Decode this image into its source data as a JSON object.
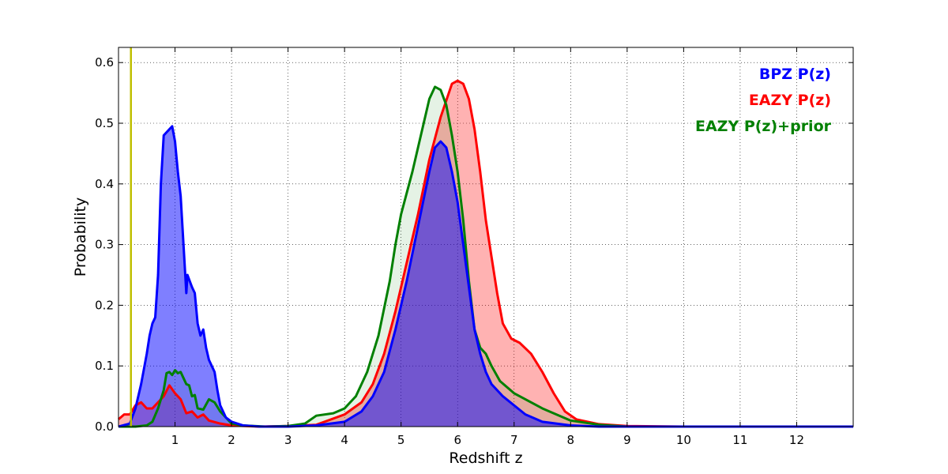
{
  "chart_data": {
    "type": "area",
    "title": "",
    "xlabel": "Redshift z",
    "ylabel": "Probability",
    "xlim": [
      0,
      13
    ],
    "ylim": [
      0,
      0.625
    ],
    "grid": true,
    "legend_position": "top-right",
    "x_ticks": [
      1,
      2,
      3,
      4,
      5,
      6,
      7,
      8,
      9,
      10,
      11,
      12
    ],
    "x_tick_labels": [
      "1",
      "2",
      "3",
      "4",
      "5",
      "6",
      "7",
      "8",
      "9",
      "10",
      "11",
      "12"
    ],
    "y_ticks": [
      0.0,
      0.1,
      0.2,
      0.3,
      0.4,
      0.5,
      0.6
    ],
    "y_tick_labels": [
      "0.0",
      "0.1",
      "0.2",
      "0.3",
      "0.4",
      "0.5",
      "0.6"
    ],
    "vertical_line": {
      "x": 0.22,
      "color": "#bfbf00"
    },
    "series": [
      {
        "name": "EAZY P(z)",
        "color": "#ff0000",
        "fill_opacity": 0.3,
        "points": [
          [
            0,
            0.012
          ],
          [
            0.1,
            0.02
          ],
          [
            0.2,
            0.02
          ],
          [
            0.3,
            0.035
          ],
          [
            0.4,
            0.04
          ],
          [
            0.5,
            0.03
          ],
          [
            0.6,
            0.03
          ],
          [
            0.7,
            0.04
          ],
          [
            0.8,
            0.05
          ],
          [
            0.9,
            0.068
          ],
          [
            1.0,
            0.055
          ],
          [
            1.1,
            0.045
          ],
          [
            1.2,
            0.022
          ],
          [
            1.3,
            0.025
          ],
          [
            1.4,
            0.015
          ],
          [
            1.5,
            0.02
          ],
          [
            1.6,
            0.01
          ],
          [
            1.8,
            0.005
          ],
          [
            2.0,
            0.002
          ],
          [
            2.5,
            0
          ],
          [
            3.0,
            0.001
          ],
          [
            3.5,
            0.003
          ],
          [
            4.0,
            0.02
          ],
          [
            4.3,
            0.04
          ],
          [
            4.5,
            0.07
          ],
          [
            4.7,
            0.12
          ],
          [
            4.9,
            0.19
          ],
          [
            5.1,
            0.27
          ],
          [
            5.3,
            0.35
          ],
          [
            5.5,
            0.44
          ],
          [
            5.7,
            0.51
          ],
          [
            5.9,
            0.565
          ],
          [
            6.0,
            0.57
          ],
          [
            6.1,
            0.565
          ],
          [
            6.2,
            0.54
          ],
          [
            6.3,
            0.49
          ],
          [
            6.4,
            0.42
          ],
          [
            6.5,
            0.34
          ],
          [
            6.6,
            0.28
          ],
          [
            6.7,
            0.22
          ],
          [
            6.8,
            0.17
          ],
          [
            6.95,
            0.145
          ],
          [
            7.1,
            0.138
          ],
          [
            7.3,
            0.12
          ],
          [
            7.5,
            0.09
          ],
          [
            7.7,
            0.055
          ],
          [
            7.9,
            0.025
          ],
          [
            8.1,
            0.012
          ],
          [
            8.5,
            0.004
          ],
          [
            9.0,
            0.001
          ],
          [
            10.0,
            0
          ],
          [
            13.0,
            0
          ]
        ]
      },
      {
        "name": "EAZY P(z)+prior",
        "color": "#008000",
        "fill_opacity": 0.1,
        "points": [
          [
            0,
            0
          ],
          [
            0.3,
            0
          ],
          [
            0.5,
            0.002
          ],
          [
            0.6,
            0.008
          ],
          [
            0.7,
            0.03
          ],
          [
            0.8,
            0.06
          ],
          [
            0.85,
            0.088
          ],
          [
            0.9,
            0.09
          ],
          [
            0.95,
            0.085
          ],
          [
            1.0,
            0.093
          ],
          [
            1.05,
            0.088
          ],
          [
            1.1,
            0.09
          ],
          [
            1.15,
            0.08
          ],
          [
            1.2,
            0.07
          ],
          [
            1.25,
            0.068
          ],
          [
            1.3,
            0.05
          ],
          [
            1.35,
            0.052
          ],
          [
            1.4,
            0.03
          ],
          [
            1.5,
            0.028
          ],
          [
            1.6,
            0.045
          ],
          [
            1.7,
            0.04
          ],
          [
            1.8,
            0.025
          ],
          [
            1.9,
            0.015
          ],
          [
            2.0,
            0.005
          ],
          [
            2.2,
            0.002
          ],
          [
            2.6,
            0
          ],
          [
            3.0,
            0.001
          ],
          [
            3.3,
            0.005
          ],
          [
            3.5,
            0.018
          ],
          [
            3.8,
            0.022
          ],
          [
            4.0,
            0.03
          ],
          [
            4.2,
            0.05
          ],
          [
            4.4,
            0.09
          ],
          [
            4.6,
            0.15
          ],
          [
            4.8,
            0.24
          ],
          [
            4.9,
            0.3
          ],
          [
            5.0,
            0.35
          ],
          [
            5.2,
            0.42
          ],
          [
            5.4,
            0.5
          ],
          [
            5.5,
            0.54
          ],
          [
            5.6,
            0.56
          ],
          [
            5.7,
            0.555
          ],
          [
            5.8,
            0.53
          ],
          [
            5.9,
            0.48
          ],
          [
            6.0,
            0.42
          ],
          [
            6.1,
            0.34
          ],
          [
            6.2,
            0.24
          ],
          [
            6.3,
            0.16
          ],
          [
            6.4,
            0.13
          ],
          [
            6.5,
            0.12
          ],
          [
            6.6,
            0.1
          ],
          [
            6.75,
            0.075
          ],
          [
            7.0,
            0.055
          ],
          [
            7.5,
            0.03
          ],
          [
            8.0,
            0.01
          ],
          [
            8.5,
            0.003
          ],
          [
            9.0,
            0
          ],
          [
            13.0,
            0
          ]
        ]
      },
      {
        "name": "BPZ P(z)",
        "color": "#0000ff",
        "fill_opacity": 0.5,
        "points": [
          [
            0,
            0
          ],
          [
            0.2,
            0.005
          ],
          [
            0.3,
            0.03
          ],
          [
            0.4,
            0.07
          ],
          [
            0.5,
            0.12
          ],
          [
            0.55,
            0.15
          ],
          [
            0.6,
            0.17
          ],
          [
            0.65,
            0.18
          ],
          [
            0.7,
            0.25
          ],
          [
            0.75,
            0.4
          ],
          [
            0.8,
            0.48
          ],
          [
            0.85,
            0.485
          ],
          [
            0.9,
            0.49
          ],
          [
            0.95,
            0.495
          ],
          [
            1.0,
            0.47
          ],
          [
            1.05,
            0.42
          ],
          [
            1.1,
            0.38
          ],
          [
            1.15,
            0.3
          ],
          [
            1.2,
            0.22
          ],
          [
            1.22,
            0.25
          ],
          [
            1.3,
            0.23
          ],
          [
            1.35,
            0.22
          ],
          [
            1.4,
            0.17
          ],
          [
            1.45,
            0.15
          ],
          [
            1.5,
            0.16
          ],
          [
            1.55,
            0.13
          ],
          [
            1.6,
            0.11
          ],
          [
            1.7,
            0.09
          ],
          [
            1.75,
            0.06
          ],
          [
            1.8,
            0.035
          ],
          [
            1.9,
            0.015
          ],
          [
            2.0,
            0.008
          ],
          [
            2.2,
            0.002
          ],
          [
            2.5,
            0
          ],
          [
            3.0,
            0
          ],
          [
            3.5,
            0.002
          ],
          [
            4.0,
            0.008
          ],
          [
            4.3,
            0.025
          ],
          [
            4.5,
            0.05
          ],
          [
            4.7,
            0.09
          ],
          [
            4.9,
            0.16
          ],
          [
            5.1,
            0.24
          ],
          [
            5.3,
            0.33
          ],
          [
            5.5,
            0.42
          ],
          [
            5.6,
            0.46
          ],
          [
            5.7,
            0.47
          ],
          [
            5.8,
            0.46
          ],
          [
            5.9,
            0.42
          ],
          [
            6.0,
            0.37
          ],
          [
            6.1,
            0.3
          ],
          [
            6.2,
            0.23
          ],
          [
            6.3,
            0.16
          ],
          [
            6.4,
            0.12
          ],
          [
            6.5,
            0.09
          ],
          [
            6.6,
            0.07
          ],
          [
            6.8,
            0.05
          ],
          [
            7.0,
            0.035
          ],
          [
            7.2,
            0.02
          ],
          [
            7.5,
            0.008
          ],
          [
            8.0,
            0.002
          ],
          [
            8.5,
            0
          ],
          [
            13.0,
            0
          ]
        ]
      }
    ],
    "legend": [
      {
        "label": "BPZ P(z)",
        "color": "#0000ff"
      },
      {
        "label": "EAZY P(z)",
        "color": "#ff0000"
      },
      {
        "label": "EAZY P(z)+prior",
        "color": "#008000"
      }
    ]
  }
}
